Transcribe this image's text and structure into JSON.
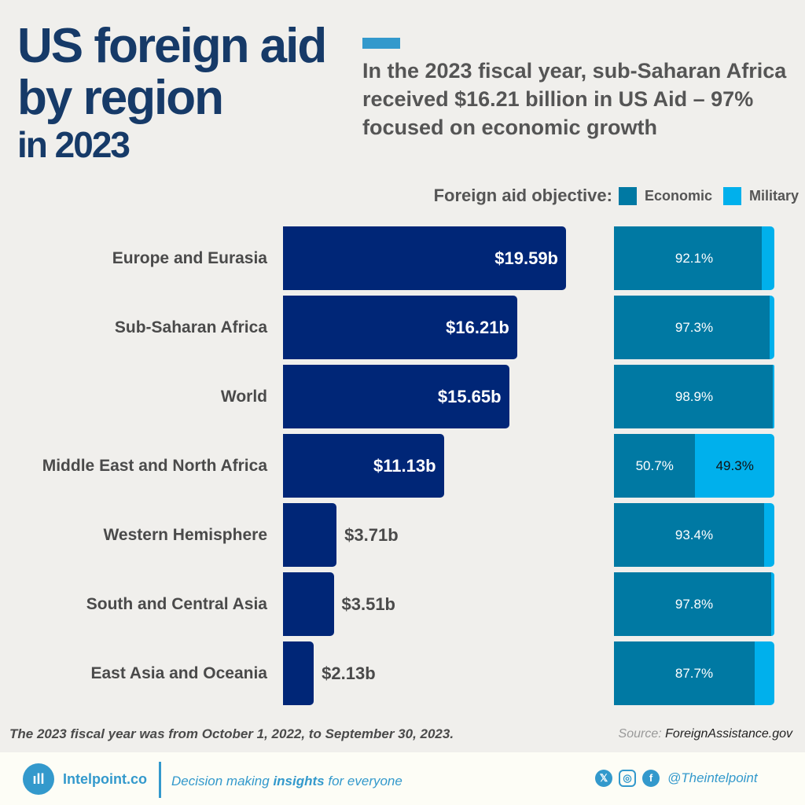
{
  "title": {
    "line1": "US foreign aid",
    "line2": "by region",
    "line3": "in 2023"
  },
  "subtitle": "In the 2023 fiscal year, sub-Saharan Africa received $16.21 billion in US Aid – 97% focused on economic growth",
  "colors": {
    "title": "#163a68",
    "bar": "#002677",
    "economic": "#0079a3",
    "military": "#00b0ec",
    "accent": "#3399cc"
  },
  "chart_data": {
    "type": "bar",
    "orientation": "horizontal",
    "categories": [
      "Europe and Eurasia",
      "Sub-Saharan Africa",
      "World",
      "Middle East and North Africa",
      "Western Hemisphere",
      "South and Central Asia",
      "East Asia and Oceania"
    ],
    "values": [
      19.59,
      16.21,
      15.65,
      11.13,
      3.71,
      3.51,
      2.13
    ],
    "value_labels": [
      "$19.59b",
      "$16.21b",
      "$15.65b",
      "$11.13b",
      "$3.71b",
      "$3.51b",
      "$2.13b"
    ],
    "legend_title": "Foreign aid objective:",
    "stacked": {
      "type": "stacked-bar",
      "series": [
        {
          "name": "Economic",
          "values": [
            92.1,
            97.3,
            98.9,
            50.7,
            93.4,
            97.8,
            87.7
          ],
          "labels": [
            "92.1%",
            "97.3%",
            "98.9%",
            "50.7%",
            "93.4%",
            "97.8%",
            "87.7%"
          ]
        },
        {
          "name": "Military",
          "values": [
            7.9,
            2.7,
            1.1,
            49.3,
            6.6,
            2.2,
            12.3
          ],
          "labels": [
            "",
            "",
            "",
            "49.3%",
            "",
            "",
            ""
          ]
        }
      ]
    }
  },
  "footnote": "The 2023 fiscal year was from October 1, 2022, to September 30, 2023.",
  "source": {
    "label": "Source:",
    "value": "ForeignAssistance.gov"
  },
  "footer": {
    "brand": "Intelpoint.co",
    "tag_pre": "Decision making ",
    "tag_bold": "insights",
    "tag_post": " for everyone",
    "handle": "@Theintelpoint",
    "icons": [
      "x-icon",
      "instagram-icon",
      "facebook-icon"
    ]
  }
}
